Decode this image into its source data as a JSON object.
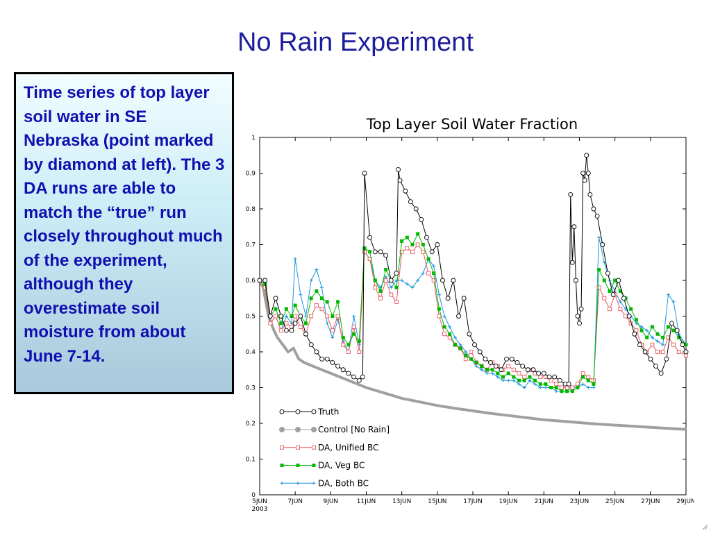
{
  "slide": {
    "title": "No Rain Experiment",
    "description": "Time series of top layer soil water in SE Nebraska (point marked by diamond at left).  The 3 DA runs are able to match the “true” run closely throughout much of the experiment, although they overestimate soil moisture from about June 7-14."
  },
  "chart_data": {
    "type": "line",
    "title": "Top Layer Soil Water Fraction",
    "xlabel": "",
    "ylabel": "",
    "xlim": [
      5,
      29
    ],
    "ylim": [
      0,
      1
    ],
    "x_ticks": [
      "5JUN",
      "7JUN",
      "9JUN",
      "11JUN",
      "13JUN",
      "15JUN",
      "17JUN",
      "19JUN",
      "21JUN",
      "23JUN",
      "25JUN",
      "27JUN",
      "29JUN"
    ],
    "x_year_label": "2003",
    "y_ticks": [
      "0",
      "0.1",
      "0.2",
      "0.3",
      "0.4",
      "0.5",
      "0.6",
      "0.7",
      "0.8",
      "0.9",
      "1"
    ],
    "grid": false,
    "legend_position": "lower-left",
    "series": [
      {
        "name": "Truth",
        "color": "#000000",
        "marker": "open-circle",
        "x": [
          5,
          5.3,
          5.6,
          5.9,
          6.2,
          6.5,
          6.8,
          7.0,
          7.3,
          7.6,
          7.9,
          8.2,
          8.5,
          8.8,
          9.1,
          9.4,
          9.7,
          10.0,
          10.3,
          10.6,
          10.8,
          10.9,
          11.2,
          11.5,
          11.8,
          12.1,
          12.4,
          12.7,
          12.8,
          12.9,
          13.2,
          13.5,
          13.8,
          14.1,
          14.4,
          14.7,
          15.0,
          15.3,
          15.6,
          15.9,
          16.2,
          16.5,
          16.8,
          17.1,
          17.4,
          17.7,
          18.0,
          18.3,
          18.6,
          18.9,
          19.2,
          19.5,
          19.8,
          20.1,
          20.4,
          20.7,
          21.0,
          21.3,
          21.6,
          21.9,
          22.2,
          22.4,
          22.5,
          22.6,
          22.7,
          22.8,
          22.9,
          23.0,
          23.1,
          23.2,
          23.3,
          23.4,
          23.5,
          23.6,
          23.8,
          24.0,
          24.3,
          24.6,
          24.9,
          25.2,
          25.5,
          25.8,
          26.1,
          26.4,
          26.7,
          27.0,
          27.3,
          27.6,
          27.9,
          28.2,
          28.5,
          28.8,
          29
        ],
        "y": [
          0.6,
          0.6,
          0.5,
          0.55,
          0.5,
          0.46,
          0.46,
          0.48,
          0.5,
          0.45,
          0.42,
          0.4,
          0.38,
          0.38,
          0.37,
          0.36,
          0.35,
          0.34,
          0.33,
          0.32,
          0.33,
          0.9,
          0.72,
          0.68,
          0.68,
          0.67,
          0.6,
          0.62,
          0.91,
          0.88,
          0.85,
          0.82,
          0.8,
          0.77,
          0.72,
          0.68,
          0.7,
          0.6,
          0.55,
          0.6,
          0.5,
          0.55,
          0.45,
          0.42,
          0.4,
          0.38,
          0.37,
          0.36,
          0.35,
          0.38,
          0.38,
          0.37,
          0.36,
          0.35,
          0.35,
          0.34,
          0.34,
          0.33,
          0.33,
          0.32,
          0.31,
          0.31,
          0.84,
          0.65,
          0.75,
          0.6,
          0.5,
          0.48,
          0.52,
          0.9,
          0.88,
          0.95,
          0.9,
          0.84,
          0.8,
          0.78,
          0.7,
          0.62,
          0.56,
          0.6,
          0.55,
          0.5,
          0.45,
          0.42,
          0.4,
          0.38,
          0.36,
          0.34,
          0.38,
          0.48,
          0.46,
          0.42,
          0.4
        ]
      },
      {
        "name": "Control [No Rain]",
        "color": "#a0a0a0",
        "marker": "filled-circle",
        "x": [
          5,
          5.2,
          5.5,
          5.8,
          6.0,
          6.3,
          6.6,
          6.9,
          7.2,
          7.5,
          8.0,
          8.5,
          9.0,
          9.5,
          10.0,
          11.0,
          12.0,
          13.0,
          14.0,
          15.0,
          16.0,
          17.0,
          18.0,
          19.0,
          20.0,
          21.0,
          22.0,
          23.0,
          24.0,
          25.0,
          26.0,
          27.0,
          28.0,
          29.0
        ],
        "y": [
          0.6,
          0.58,
          0.5,
          0.46,
          0.44,
          0.42,
          0.4,
          0.41,
          0.38,
          0.37,
          0.36,
          0.35,
          0.34,
          0.33,
          0.32,
          0.3,
          0.285,
          0.27,
          0.26,
          0.25,
          0.242,
          0.235,
          0.228,
          0.222,
          0.216,
          0.21,
          0.206,
          0.202,
          0.198,
          0.195,
          0.192,
          0.189,
          0.186,
          0.183
        ]
      },
      {
        "name": "DA,  Unified BC",
        "color": "#e8585c",
        "marker": "open-square",
        "x": [
          5,
          5.3,
          5.6,
          5.9,
          6.2,
          6.5,
          6.8,
          7.0,
          7.3,
          7.6,
          7.9,
          8.2,
          8.5,
          8.8,
          9.1,
          9.4,
          9.7,
          10.0,
          10.3,
          10.6,
          10.9,
          11.2,
          11.5,
          11.8,
          12.1,
          12.4,
          12.7,
          13.0,
          13.3,
          13.6,
          13.9,
          14.2,
          14.5,
          14.8,
          15.1,
          15.4,
          15.7,
          16.0,
          16.3,
          16.6,
          16.9,
          17.2,
          17.5,
          17.8,
          18.1,
          18.4,
          18.7,
          19.0,
          19.3,
          19.6,
          19.9,
          20.2,
          20.5,
          20.8,
          21.1,
          21.4,
          21.7,
          22.0,
          22.3,
          22.6,
          22.9,
          23.2,
          23.5,
          23.8,
          24.1,
          24.4,
          24.7,
          25.0,
          25.3,
          25.6,
          25.9,
          26.2,
          26.5,
          26.8,
          27.1,
          27.4,
          27.7,
          28.0,
          28.3,
          28.6,
          29
        ],
        "y": [
          0.6,
          0.58,
          0.48,
          0.5,
          0.46,
          0.48,
          0.47,
          0.5,
          0.47,
          0.45,
          0.5,
          0.53,
          0.52,
          0.5,
          0.46,
          0.5,
          0.42,
          0.4,
          0.47,
          0.4,
          0.68,
          0.66,
          0.58,
          0.55,
          0.6,
          0.56,
          0.54,
          0.68,
          0.69,
          0.68,
          0.7,
          0.68,
          0.62,
          0.6,
          0.5,
          0.45,
          0.44,
          0.42,
          0.41,
          0.38,
          0.4,
          0.37,
          0.36,
          0.35,
          0.37,
          0.36,
          0.35,
          0.36,
          0.35,
          0.34,
          0.33,
          0.35,
          0.34,
          0.33,
          0.33,
          0.32,
          0.31,
          0.3,
          0.3,
          0.3,
          0.31,
          0.34,
          0.33,
          0.32,
          0.58,
          0.55,
          0.52,
          0.56,
          0.52,
          0.5,
          0.48,
          0.46,
          0.42,
          0.4,
          0.42,
          0.4,
          0.4,
          0.44,
          0.42,
          0.4,
          0.39
        ]
      },
      {
        "name": "DA,  Veg BC",
        "color": "#00b800",
        "marker": "filled-square",
        "x": [
          5,
          5.3,
          5.6,
          5.9,
          6.2,
          6.5,
          6.8,
          7.0,
          7.3,
          7.6,
          7.9,
          8.2,
          8.5,
          8.8,
          9.1,
          9.4,
          9.7,
          10.0,
          10.3,
          10.6,
          10.9,
          11.2,
          11.5,
          11.8,
          12.1,
          12.4,
          12.7,
          13.0,
          13.3,
          13.6,
          13.9,
          14.2,
          14.5,
          14.8,
          15.1,
          15.4,
          15.7,
          16.0,
          16.3,
          16.6,
          16.9,
          17.2,
          17.5,
          17.8,
          18.1,
          18.4,
          18.7,
          19.0,
          19.3,
          19.6,
          19.9,
          20.2,
          20.5,
          20.8,
          21.1,
          21.4,
          21.7,
          22.0,
          22.3,
          22.6,
          22.9,
          23.2,
          23.5,
          23.8,
          24.1,
          24.4,
          24.7,
          25.0,
          25.3,
          25.6,
          25.9,
          26.2,
          26.5,
          26.8,
          27.1,
          27.4,
          27.7,
          28.0,
          28.3,
          28.6,
          29
        ],
        "y": [
          0.6,
          0.59,
          0.5,
          0.52,
          0.48,
          0.52,
          0.5,
          0.53,
          0.5,
          0.48,
          0.55,
          0.57,
          0.55,
          0.54,
          0.5,
          0.54,
          0.44,
          0.42,
          0.45,
          0.43,
          0.69,
          0.68,
          0.6,
          0.57,
          0.63,
          0.6,
          0.58,
          0.71,
          0.72,
          0.7,
          0.73,
          0.7,
          0.66,
          0.62,
          0.52,
          0.47,
          0.45,
          0.42,
          0.41,
          0.39,
          0.38,
          0.37,
          0.36,
          0.35,
          0.35,
          0.34,
          0.33,
          0.34,
          0.33,
          0.32,
          0.32,
          0.33,
          0.32,
          0.31,
          0.31,
          0.3,
          0.3,
          0.29,
          0.29,
          0.29,
          0.3,
          0.33,
          0.32,
          0.31,
          0.63,
          0.6,
          0.57,
          0.6,
          0.57,
          0.55,
          0.52,
          0.49,
          0.46,
          0.44,
          0.47,
          0.45,
          0.44,
          0.47,
          0.46,
          0.44,
          0.42
        ]
      },
      {
        "name": "DA,  Both BC",
        "color": "#1a96e0",
        "marker": "plus",
        "x": [
          5,
          5.3,
          5.6,
          5.9,
          6.2,
          6.5,
          6.8,
          7.0,
          7.3,
          7.6,
          7.9,
          8.2,
          8.5,
          8.8,
          9.1,
          9.4,
          9.7,
          10.0,
          10.3,
          10.6,
          10.9,
          11.2,
          11.5,
          11.8,
          12.1,
          12.4,
          12.7,
          13.0,
          13.3,
          13.6,
          13.9,
          14.2,
          14.5,
          14.8,
          15.1,
          15.4,
          15.7,
          16.0,
          16.3,
          16.6,
          16.9,
          17.2,
          17.5,
          17.8,
          18.1,
          18.4,
          18.7,
          19.0,
          19.3,
          19.6,
          19.9,
          20.2,
          20.5,
          20.8,
          21.1,
          21.4,
          21.7,
          22.0,
          22.3,
          22.6,
          22.9,
          23.2,
          23.5,
          23.8,
          24.1,
          24.4,
          24.7,
          25.0,
          25.3,
          25.6,
          25.9,
          26.2,
          26.5,
          26.8,
          27.1,
          27.4,
          27.7,
          28.0,
          28.3,
          28.6,
          29
        ],
        "y": [
          0.6,
          0.6,
          0.48,
          0.5,
          0.46,
          0.5,
          0.48,
          0.66,
          0.56,
          0.5,
          0.6,
          0.63,
          0.58,
          0.48,
          0.44,
          0.49,
          0.43,
          0.4,
          0.5,
          0.42,
          0.68,
          0.66,
          0.6,
          0.58,
          0.61,
          0.58,
          0.6,
          0.6,
          0.59,
          0.58,
          0.6,
          0.62,
          0.66,
          0.64,
          0.56,
          0.5,
          0.47,
          0.44,
          0.42,
          0.4,
          0.38,
          0.36,
          0.35,
          0.34,
          0.34,
          0.33,
          0.32,
          0.32,
          0.32,
          0.31,
          0.3,
          0.32,
          0.31,
          0.3,
          0.3,
          0.3,
          0.29,
          0.29,
          0.29,
          0.3,
          0.3,
          0.31,
          0.3,
          0.3,
          0.72,
          0.65,
          0.6,
          0.57,
          0.54,
          0.52,
          0.5,
          0.48,
          0.47,
          0.46,
          0.44,
          0.43,
          0.42,
          0.56,
          0.54,
          0.45,
          0.42
        ]
      }
    ]
  }
}
